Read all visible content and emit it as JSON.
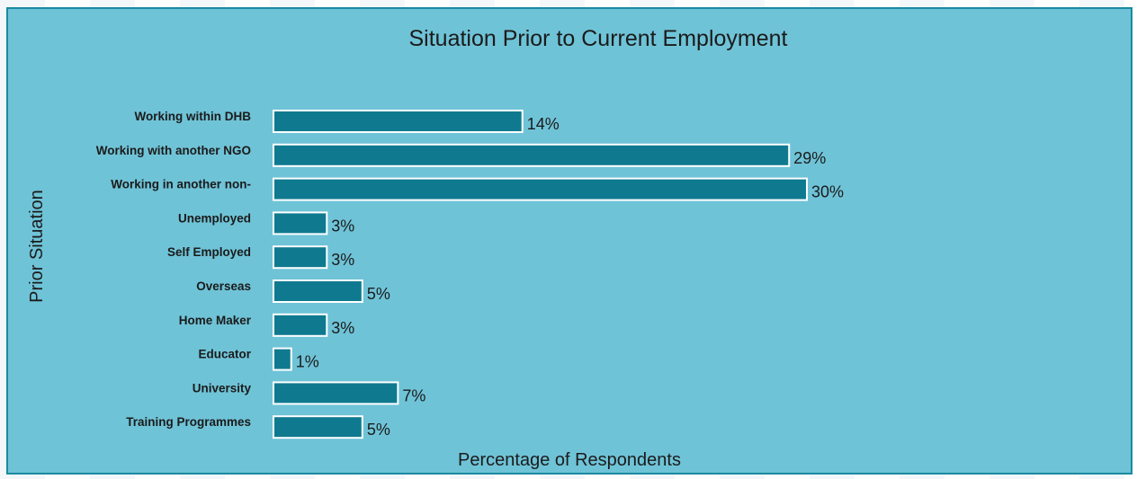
{
  "colors": {
    "panel_bg": "#6fc3d7",
    "panel_border": "#1a8aa0",
    "bar_fill": "#0f7a8f",
    "bar_stroke": "#ffffff"
  },
  "chart_data": {
    "type": "bar",
    "orientation": "horizontal",
    "title": "Situation Prior to Current Employment",
    "xlabel": "Percentage of Respondents",
    "ylabel": "Prior Situation",
    "categories": [
      "Working within DHB",
      "Working with another NGO",
      "Working in another non-",
      "Unemployed",
      "Self Employed",
      "Overseas",
      "Home Maker",
      "Educator",
      "University",
      "Training Programmes"
    ],
    "values": [
      14,
      29,
      30,
      3,
      3,
      5,
      3,
      1,
      7,
      5
    ],
    "data_labels": [
      "14%",
      "29%",
      "30%",
      "3%",
      "3%",
      "5%",
      "3%",
      "1%",
      "7%",
      "5%"
    ],
    "xlim": [
      0,
      30
    ],
    "grid": false,
    "legend": "none"
  }
}
